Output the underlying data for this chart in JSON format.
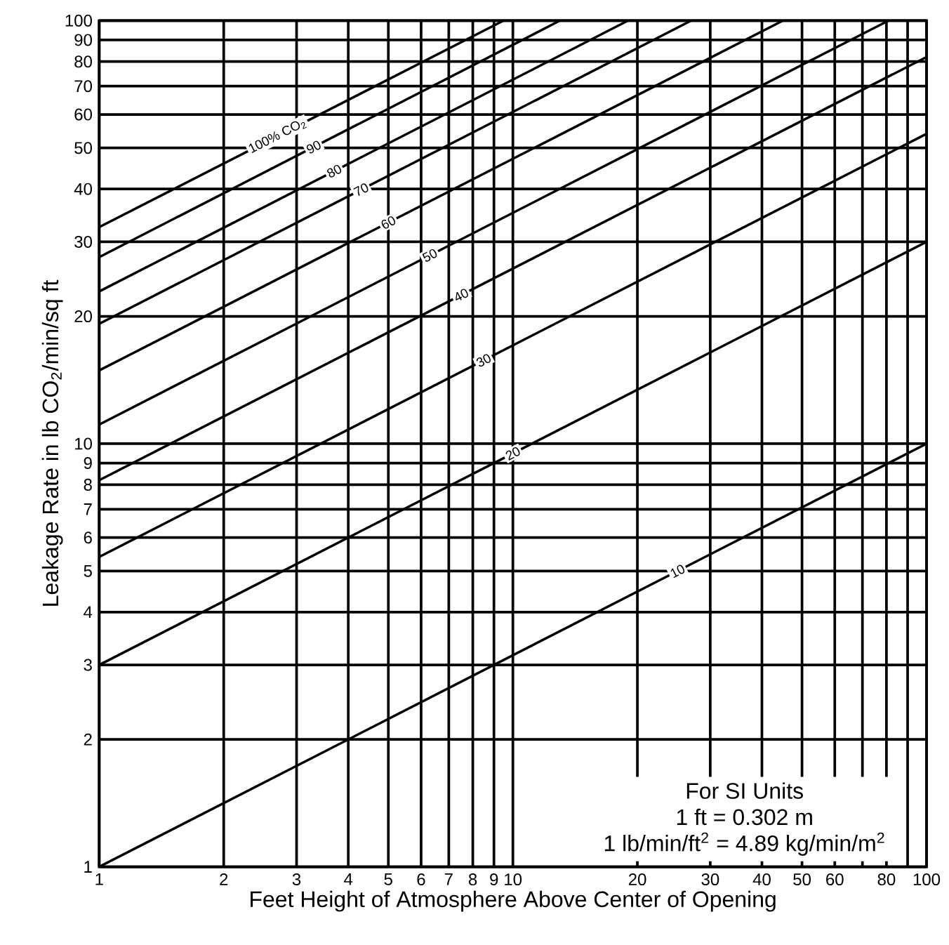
{
  "chart_data": {
    "type": "line",
    "log": "xy",
    "grid": true,
    "marker": "none",
    "line_style": "solid",
    "xlabel": "Feet Height of Atmosphere Above Center of Opening",
    "ylabel": "Leakage Rate in lb CO$_{2}$/min/sq ft",
    "xlim": [
      1,
      100
    ],
    "ylim": [
      1,
      100
    ],
    "xticks": [
      1,
      2,
      3,
      4,
      5,
      6,
      7,
      8,
      9,
      10,
      20,
      30,
      40,
      50,
      60,
      {
        "value": 70,
        "label": null
      },
      80,
      {
        "value": 90,
        "label": null
      },
      100
    ],
    "yticks": [
      1,
      2,
      3,
      4,
      5,
      6,
      7,
      8,
      9,
      10,
      20,
      30,
      40,
      50,
      60,
      70,
      80,
      90,
      100
    ],
    "series": [
      {
        "name": "10",
        "color": "#000000",
        "x": [
          1,
          100
        ],
        "values": [
          1,
          10
        ]
      },
      {
        "name": "20",
        "color": "#000000",
        "x": [
          1,
          100
        ],
        "values": [
          3,
          30
        ]
      },
      {
        "name": "30",
        "color": "#000000",
        "x": [
          1,
          100
        ],
        "values": [
          5.4,
          54
        ]
      },
      {
        "name": "40",
        "color": "#000000",
        "x": [
          1,
          100
        ],
        "values": [
          8.2,
          82
        ]
      },
      {
        "name": "50",
        "color": "#000000",
        "x": [
          1,
          81
        ],
        "values": [
          11.1,
          100
        ]
      },
      {
        "name": "60",
        "color": "#000000",
        "x": [
          1,
          45
        ],
        "values": [
          14.9,
          100
        ]
      },
      {
        "name": "70",
        "color": "#000000",
        "x": [
          1,
          27
        ],
        "values": [
          19.2,
          100
        ]
      },
      {
        "name": "80",
        "color": "#000000",
        "x": [
          1,
          19
        ],
        "values": [
          22.9,
          100
        ]
      },
      {
        "name": "90",
        "color": "#000000",
        "x": [
          1,
          13
        ],
        "values": [
          27.6,
          100
        ]
      },
      {
        "name": "100% CO$_{2}$",
        "color": "#000000",
        "x": [
          1,
          9.5
        ],
        "values": [
          32.5,
          100
        ]
      }
    ],
    "annotations": [
      "For SI Units",
      "1 ft = 0.302 m",
      "1 lb/min/ft$^{2}$ = 4.89 kg/min/m$^{2}$"
    ]
  }
}
